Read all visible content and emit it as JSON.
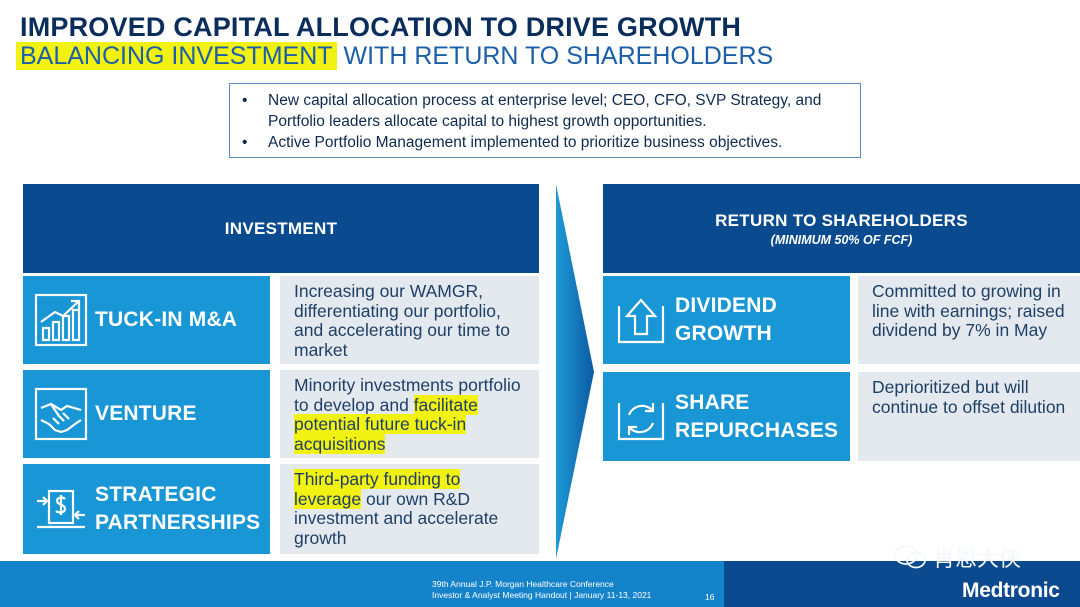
{
  "header": {
    "title": "IMPROVED CAPITAL ALLOCATION TO DRIVE GROWTH",
    "subtitle_highlight": "BALANCING INVESTMENT",
    "subtitle_rest": "WITH RETURN TO SHAREHOLDERS"
  },
  "bullets": [
    "New capital allocation process at enterprise level; CEO, CFO, SVP Strategy, and Portfolio leaders allocate capital to highest growth opportunities.",
    "Active Portfolio Management implemented to prioritize business objectives."
  ],
  "investment": {
    "header": "INVESTMENT",
    "rows": [
      {
        "label_line1": "TUCK-IN M&A",
        "label_line2": "",
        "icon": "growth-chart-icon",
        "desc_plain": "Increasing our WAMGR, differentiating our portfolio, and accelerating our time to market",
        "desc_highlight": "",
        "desc_after": ""
      },
      {
        "label_line1": "VENTURE",
        "label_line2": "",
        "icon": "handshake-icon",
        "desc_plain": "Minority investments portfolio to develop and ",
        "desc_highlight": "facilitate potential future tuck-in acquisitions",
        "desc_after": ""
      },
      {
        "label_line1": "STRATEGIC",
        "label_line2": "PARTNERSHIPS",
        "icon": "dollar-exchange-icon",
        "desc_plain": "",
        "desc_highlight": "Third-party funding to leverage",
        "desc_after": " our own R&D investment and accelerate growth"
      }
    ]
  },
  "returns": {
    "header": "RETURN TO SHAREHOLDERS",
    "subheader": "(MINIMUM 50% OF FCF)",
    "rows": [
      {
        "label_line1": "DIVIDEND",
        "label_line2": "GROWTH",
        "icon": "up-arrow-icon",
        "desc": "Committed to growing in line with earnings; raised dividend by 7% in May"
      },
      {
        "label_line1": "SHARE",
        "label_line2": "REPURCHASES",
        "icon": "cycle-icon",
        "desc": "Deprioritized but will continue to offset dilution"
      }
    ]
  },
  "footer": {
    "line1": "39th Annual J.P. Morgan Healthcare Conference",
    "line2": "Investor & Analyst Meeting Handout  |  January 11-13, 2021",
    "page": "16",
    "brand": "Medtronic",
    "watermark": "肖恩大侠"
  },
  "colors": {
    "navy": "#0a4a8e",
    "blue": "#1996d6",
    "panel": "#e4e9ef",
    "highlight": "#f2f212"
  }
}
